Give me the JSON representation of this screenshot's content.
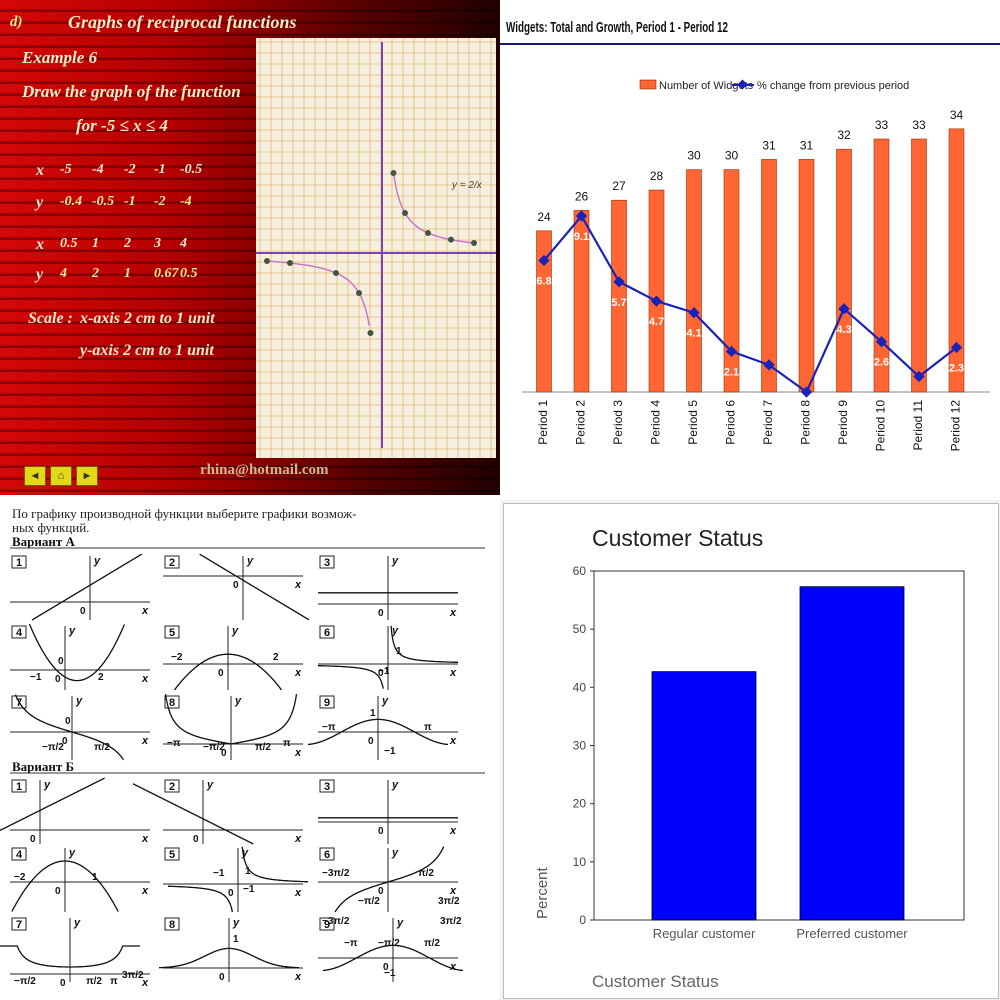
{
  "q1": {
    "section_label": "d)",
    "title": "Graphs of reciprocal functions",
    "example": "Example 6",
    "instruction": "Draw the graph of the function",
    "range": "for -5 ≤ x ≤ 4",
    "table1": {
      "x_label": "x",
      "x": [
        "-5",
        "-4",
        "-2",
        "-1",
        "-0.5"
      ],
      "y_label": "y",
      "y": [
        "-0.4",
        "-0.5",
        "-1",
        "-2",
        "-4"
      ]
    },
    "table2": {
      "x_label": "x",
      "x": [
        "0.5",
        "1",
        "2",
        "3",
        "4"
      ],
      "y_label": "y",
      "y": [
        "4",
        "2",
        "1",
        "0.67",
        "0.5"
      ]
    },
    "scale_label": "Scale :",
    "scale_x": "x-axis 2 cm to 1 unit",
    "scale_y": "y-axis 2 cm to 1 unit",
    "email": "rhina@hotmail.com",
    "curve_label": "y = 2/x",
    "nav": [
      "◄",
      "⌂",
      "►"
    ]
  },
  "q2_chart": {
    "chart_data": {
      "type": "bar",
      "title": "Widgets: Total and Growth, Period 1 - Period 12",
      "categories": [
        "Period 1",
        "Period 2",
        "Period 3",
        "Period 4",
        "Period 5",
        "Period 6",
        "Period 7",
        "Period 8",
        "Period 9",
        "Period 10",
        "Period 11",
        "Period 12"
      ],
      "series": [
        {
          "name": "Number of Widgets",
          "type": "bar",
          "values": [
            24,
            26,
            27,
            28,
            30,
            30,
            31,
            31,
            32,
            33,
            33,
            34
          ],
          "color": "#ff6633"
        },
        {
          "name": "% change from previous period",
          "type": "line",
          "values": [
            6.8,
            9.1,
            5.7,
            4.7,
            4.1,
            2.1,
            1.4,
            0.0,
            4.3,
            2.6,
            0.8,
            2.3
          ],
          "color": "#1a22b8"
        }
      ],
      "bar_data_labels": [
        "24",
        "26",
        "27",
        "28",
        "30",
        "30",
        "31",
        "31",
        "32",
        "33",
        "33",
        "34"
      ],
      "line_data_labels": [
        "6.8",
        "9.1",
        "5.7",
        "4.7",
        "4.1",
        "2.1",
        "",
        "",
        "4.3",
        "2.6",
        "",
        "2.3"
      ],
      "legend_position": "top"
    }
  },
  "q3": {
    "intro_line1": "По графику производной функции выберите графики возмож-",
    "intro_line2": "ных функций.",
    "variant_a": "Вариант А",
    "variant_b": "Вариант Б",
    "labels": {
      "x": "x",
      "y": "y",
      "zero": "0",
      "one": "1",
      "neg_one": "−1",
      "two": "2",
      "neg_two": "−2",
      "pi": "π",
      "neg_pi": "−π",
      "pi_2": "π/2",
      "neg_pi_2": "−π/2",
      "three_pi_2": "3π/2",
      "neg_three_pi_2": "−3π/2"
    },
    "panels_a": [
      "1",
      "2",
      "3",
      "4",
      "5",
      "6",
      "7",
      "8",
      "9"
    ],
    "panels_b": [
      "1",
      "2",
      "3",
      "4",
      "5",
      "6",
      "7",
      "8",
      "9"
    ]
  },
  "q4_chart": {
    "chart_data": {
      "type": "bar",
      "title": "Customer Status",
      "categories": [
        "Regular customer",
        "Preferred customer"
      ],
      "values": [
        42.7,
        57.3
      ],
      "xlabel": "Customer Status",
      "ylabel": "Percent",
      "ylim": [
        0,
        60
      ],
      "yticks": [
        "0",
        "10",
        "20",
        "30",
        "40",
        "50",
        "60"
      ],
      "bar_color": "#0000ff",
      "grid": false
    }
  }
}
